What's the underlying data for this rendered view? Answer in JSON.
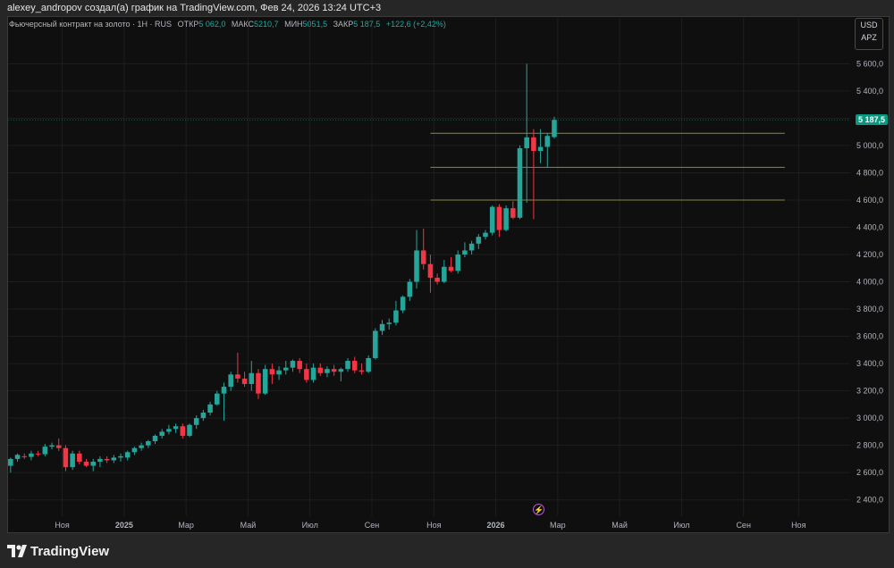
{
  "header": {
    "caption": "alexey_andropov создал(а) график на TradingView.com, Фев 24, 2026 13:24 UTC+3"
  },
  "legend": {
    "title": "Фьючерсный контракт на золото · 1Н · RUS",
    "open_label": "ОТКР",
    "open_value": "5 062,0",
    "high_label": "МАКС",
    "high_value": "5210,7",
    "low_label": "МИН",
    "low_value": "5051,5",
    "close_label": "ЗАКР",
    "close_value": "5 187,5",
    "change": "+122,6 (+2,42%)"
  },
  "currency": {
    "code": "USD",
    "unit": "АРZ"
  },
  "last_price_tag": "5 187,5",
  "brand": {
    "name": "TradingView"
  },
  "colors": {
    "up": "#26a69a",
    "down": "#f23645",
    "background": "#0f0f0f",
    "hline": "#8a8a3a",
    "price_line": "#089981"
  },
  "chart_data": {
    "type": "candlestick",
    "timeframe": "1W",
    "y_ticks": [
      "2 400,0",
      "2 600,0",
      "2 800,0",
      "3 000,0",
      "3 200,0",
      "3 400,0",
      "3 600,0",
      "3 800,0",
      "4 000,0",
      "4 200,0",
      "4 400,0",
      "4 600,0",
      "4 800,0",
      "5 000,0",
      "5 200,0",
      "5 400,0",
      "5 600,0"
    ],
    "y_tick_values": [
      2400,
      2600,
      2800,
      3000,
      3200,
      3400,
      3600,
      3800,
      4000,
      4200,
      4400,
      4600,
      4800,
      5000,
      5200,
      5400,
      5600
    ],
    "ylim": [
      2280,
      5740
    ],
    "x_ticks": [
      {
        "label": "Ноя",
        "index": 8
      },
      {
        "label": "2025",
        "index": 17
      },
      {
        "label": "Мар",
        "index": 26
      },
      {
        "label": "Май",
        "index": 35
      },
      {
        "label": "Июл",
        "index": 44
      },
      {
        "label": "Сен",
        "index": 53
      },
      {
        "label": "Ноя",
        "index": 62
      },
      {
        "label": "2026",
        "index": 71
      },
      {
        "label": "Мар",
        "index": 80
      },
      {
        "label": "Май",
        "index": 89
      },
      {
        "label": "Июл",
        "index": 98
      },
      {
        "label": "Сен",
        "index": 107
      },
      {
        "label": "Ноя",
        "index": 115
      }
    ],
    "x_range": [
      0,
      122.5
    ],
    "candles": [
      {
        "o": 2650,
        "h": 2710,
        "l": 2600,
        "c": 2700
      },
      {
        "o": 2700,
        "h": 2740,
        "l": 2680,
        "c": 2730
      },
      {
        "o": 2720,
        "h": 2740,
        "l": 2700,
        "c": 2715
      },
      {
        "o": 2715,
        "h": 2760,
        "l": 2690,
        "c": 2740
      },
      {
        "o": 2740,
        "h": 2760,
        "l": 2720,
        "c": 2735
      },
      {
        "o": 2735,
        "h": 2810,
        "l": 2720,
        "c": 2790
      },
      {
        "o": 2790,
        "h": 2820,
        "l": 2770,
        "c": 2800
      },
      {
        "o": 2800,
        "h": 2850,
        "l": 2760,
        "c": 2780
      },
      {
        "o": 2780,
        "h": 2800,
        "l": 2610,
        "c": 2640
      },
      {
        "o": 2640,
        "h": 2760,
        "l": 2620,
        "c": 2740
      },
      {
        "o": 2740,
        "h": 2760,
        "l": 2660,
        "c": 2680
      },
      {
        "o": 2680,
        "h": 2700,
        "l": 2640,
        "c": 2650
      },
      {
        "o": 2650,
        "h": 2700,
        "l": 2610,
        "c": 2680
      },
      {
        "o": 2680,
        "h": 2720,
        "l": 2640,
        "c": 2700
      },
      {
        "o": 2700,
        "h": 2720,
        "l": 2670,
        "c": 2690
      },
      {
        "o": 2690,
        "h": 2730,
        "l": 2670,
        "c": 2710
      },
      {
        "o": 2710,
        "h": 2740,
        "l": 2680,
        "c": 2720
      },
      {
        "o": 2710,
        "h": 2760,
        "l": 2690,
        "c": 2750
      },
      {
        "o": 2750,
        "h": 2790,
        "l": 2730,
        "c": 2780
      },
      {
        "o": 2780,
        "h": 2820,
        "l": 2760,
        "c": 2800
      },
      {
        "o": 2800,
        "h": 2840,
        "l": 2780,
        "c": 2830
      },
      {
        "o": 2830,
        "h": 2880,
        "l": 2810,
        "c": 2870
      },
      {
        "o": 2870,
        "h": 2920,
        "l": 2850,
        "c": 2900
      },
      {
        "o": 2900,
        "h": 2950,
        "l": 2880,
        "c": 2920
      },
      {
        "o": 2920,
        "h": 2960,
        "l": 2890,
        "c": 2940
      },
      {
        "o": 2940,
        "h": 2960,
        "l": 2850,
        "c": 2870
      },
      {
        "o": 2870,
        "h": 2960,
        "l": 2860,
        "c": 2950
      },
      {
        "o": 2950,
        "h": 3020,
        "l": 2920,
        "c": 3000
      },
      {
        "o": 3000,
        "h": 3060,
        "l": 2980,
        "c": 3040
      },
      {
        "o": 3040,
        "h": 3120,
        "l": 3020,
        "c": 3100
      },
      {
        "o": 3100,
        "h": 3200,
        "l": 3090,
        "c": 3180
      },
      {
        "o": 3180,
        "h": 3260,
        "l": 2980,
        "c": 3230
      },
      {
        "o": 3230,
        "h": 3340,
        "l": 3200,
        "c": 3320
      },
      {
        "o": 3320,
        "h": 3480,
        "l": 3260,
        "c": 3290
      },
      {
        "o": 3290,
        "h": 3340,
        "l": 3230,
        "c": 3250
      },
      {
        "o": 3250,
        "h": 3420,
        "l": 3200,
        "c": 3330
      },
      {
        "o": 3330,
        "h": 3360,
        "l": 3140,
        "c": 3180
      },
      {
        "o": 3180,
        "h": 3390,
        "l": 3170,
        "c": 3360
      },
      {
        "o": 3360,
        "h": 3400,
        "l": 3250,
        "c": 3320
      },
      {
        "o": 3320,
        "h": 3380,
        "l": 3280,
        "c": 3350
      },
      {
        "o": 3350,
        "h": 3420,
        "l": 3320,
        "c": 3370
      },
      {
        "o": 3370,
        "h": 3430,
        "l": 3340,
        "c": 3420
      },
      {
        "o": 3420,
        "h": 3440,
        "l": 3330,
        "c": 3360
      },
      {
        "o": 3360,
        "h": 3400,
        "l": 3260,
        "c": 3280
      },
      {
        "o": 3280,
        "h": 3400,
        "l": 3260,
        "c": 3370
      },
      {
        "o": 3370,
        "h": 3400,
        "l": 3310,
        "c": 3330
      },
      {
        "o": 3330,
        "h": 3380,
        "l": 3300,
        "c": 3360
      },
      {
        "o": 3360,
        "h": 3390,
        "l": 3310,
        "c": 3340
      },
      {
        "o": 3340,
        "h": 3370,
        "l": 3270,
        "c": 3360
      },
      {
        "o": 3360,
        "h": 3440,
        "l": 3340,
        "c": 3420
      },
      {
        "o": 3420,
        "h": 3450,
        "l": 3330,
        "c": 3350
      },
      {
        "o": 3350,
        "h": 3400,
        "l": 3320,
        "c": 3340
      },
      {
        "o": 3340,
        "h": 3460,
        "l": 3330,
        "c": 3440
      },
      {
        "o": 3440,
        "h": 3660,
        "l": 3430,
        "c": 3640
      },
      {
        "o": 3640,
        "h": 3720,
        "l": 3610,
        "c": 3690
      },
      {
        "o": 3690,
        "h": 3730,
        "l": 3650,
        "c": 3700
      },
      {
        "o": 3700,
        "h": 3860,
        "l": 3680,
        "c": 3790
      },
      {
        "o": 3790,
        "h": 3900,
        "l": 3770,
        "c": 3890
      },
      {
        "o": 3890,
        "h": 4020,
        "l": 3860,
        "c": 4000
      },
      {
        "o": 4000,
        "h": 4380,
        "l": 3950,
        "c": 4230
      },
      {
        "o": 4230,
        "h": 4390,
        "l": 4090,
        "c": 4130
      },
      {
        "o": 4130,
        "h": 4200,
        "l": 3920,
        "c": 4030
      },
      {
        "o": 4030,
        "h": 4060,
        "l": 3980,
        "c": 4000
      },
      {
        "o": 4000,
        "h": 4160,
        "l": 3990,
        "c": 4110
      },
      {
        "o": 4110,
        "h": 4180,
        "l": 4070,
        "c": 4080
      },
      {
        "o": 4080,
        "h": 4230,
        "l": 4060,
        "c": 4200
      },
      {
        "o": 4200,
        "h": 4290,
        "l": 4180,
        "c": 4230
      },
      {
        "o": 4230,
        "h": 4300,
        "l": 4200,
        "c": 4280
      },
      {
        "o": 4280,
        "h": 4350,
        "l": 4240,
        "c": 4330
      },
      {
        "o": 4330,
        "h": 4380,
        "l": 4310,
        "c": 4360
      },
      {
        "o": 4360,
        "h": 4560,
        "l": 4340,
        "c": 4550
      },
      {
        "o": 4550,
        "h": 4570,
        "l": 4330,
        "c": 4380
      },
      {
        "o": 4380,
        "h": 4560,
        "l": 4370,
        "c": 4540
      },
      {
        "o": 4540,
        "h": 4590,
        "l": 4460,
        "c": 4470
      },
      {
        "o": 4470,
        "h": 5000,
        "l": 4460,
        "c": 4980
      },
      {
        "o": 4980,
        "h": 5600,
        "l": 4580,
        "c": 5060
      },
      {
        "o": 5060,
        "h": 5120,
        "l": 4460,
        "c": 4960
      },
      {
        "o": 4960,
        "h": 5120,
        "l": 4870,
        "c": 4990
      },
      {
        "o": 4990,
        "h": 5090,
        "l": 4840,
        "c": 5070
      },
      {
        "o": 5062,
        "h": 5210.7,
        "l": 5051.5,
        "c": 5187.5
      }
    ],
    "horizontal_lines": [
      5090,
      4840,
      4600
    ],
    "last_price": 5187.5
  }
}
